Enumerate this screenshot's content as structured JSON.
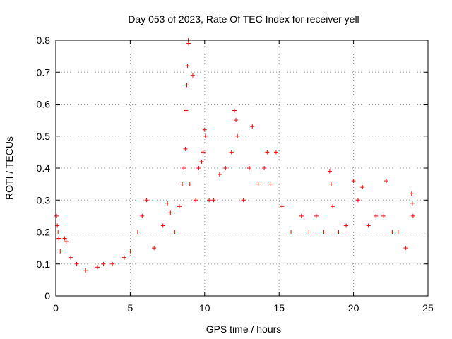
{
  "chart_data": {
    "type": "scatter",
    "title": "Day 053 of 2023, Rate Of TEC Index for receiver yell",
    "xlabel": "GPS time / hours",
    "ylabel": "ROTI / TECUs",
    "xlim": [
      0,
      25
    ],
    "ylim": [
      0,
      0.8
    ],
    "xticks": [
      "0",
      "5",
      "10",
      "15",
      "20",
      "25"
    ],
    "yticks": [
      "0",
      "0.1",
      "0.2",
      "0.3",
      "0.4",
      "0.5",
      "0.6",
      "0.7",
      "0.8"
    ],
    "grid": true,
    "marker": "+",
    "color": "#ff0000",
    "series": [
      {
        "points": [
          [
            0.05,
            0.25
          ],
          [
            0.1,
            0.22
          ],
          [
            0.15,
            0.2
          ],
          [
            0.2,
            0.18
          ],
          [
            0.3,
            0.14
          ],
          [
            0.6,
            0.18
          ],
          [
            0.7,
            0.17
          ],
          [
            1.0,
            0.12
          ],
          [
            1.4,
            0.1
          ],
          [
            2.0,
            0.08
          ],
          [
            2.8,
            0.09
          ],
          [
            3.2,
            0.1
          ],
          [
            3.8,
            0.1
          ],
          [
            4.6,
            0.12
          ],
          [
            5.0,
            0.14
          ],
          [
            5.5,
            0.2
          ],
          [
            5.8,
            0.25
          ],
          [
            6.1,
            0.3
          ],
          [
            6.6,
            0.15
          ],
          [
            7.2,
            0.22
          ],
          [
            7.5,
            0.29
          ],
          [
            7.7,
            0.26
          ],
          [
            8.0,
            0.2
          ],
          [
            8.3,
            0.28
          ],
          [
            8.5,
            0.35
          ],
          [
            8.6,
            0.4
          ],
          [
            8.7,
            0.46
          ],
          [
            8.75,
            0.58
          ],
          [
            8.8,
            0.66
          ],
          [
            8.85,
            0.72
          ],
          [
            8.9,
            0.8
          ],
          [
            8.92,
            0.79
          ],
          [
            9.0,
            0.35
          ],
          [
            9.2,
            0.69
          ],
          [
            9.4,
            0.3
          ],
          [
            9.6,
            0.4
          ],
          [
            9.8,
            0.42
          ],
          [
            9.9,
            0.45
          ],
          [
            10.0,
            0.52
          ],
          [
            10.05,
            0.5
          ],
          [
            10.3,
            0.3
          ],
          [
            10.6,
            0.3
          ],
          [
            11.0,
            0.38
          ],
          [
            11.4,
            0.4
          ],
          [
            11.8,
            0.45
          ],
          [
            12.0,
            0.58
          ],
          [
            12.1,
            0.55
          ],
          [
            12.2,
            0.5
          ],
          [
            12.6,
            0.3
          ],
          [
            13.0,
            0.4
          ],
          [
            13.2,
            0.53
          ],
          [
            13.6,
            0.35
          ],
          [
            14.0,
            0.4
          ],
          [
            14.2,
            0.45
          ],
          [
            14.4,
            0.35
          ],
          [
            14.8,
            0.45
          ],
          [
            15.2,
            0.28
          ],
          [
            15.8,
            0.2
          ],
          [
            16.5,
            0.25
          ],
          [
            17.0,
            0.2
          ],
          [
            17.5,
            0.25
          ],
          [
            18.0,
            0.2
          ],
          [
            18.4,
            0.39
          ],
          [
            18.5,
            0.35
          ],
          [
            18.6,
            0.28
          ],
          [
            19.0,
            0.2
          ],
          [
            19.5,
            0.22
          ],
          [
            20.0,
            0.36
          ],
          [
            20.3,
            0.3
          ],
          [
            20.6,
            0.34
          ],
          [
            21.0,
            0.22
          ],
          [
            21.5,
            0.25
          ],
          [
            22.0,
            0.25
          ],
          [
            22.2,
            0.36
          ],
          [
            22.6,
            0.2
          ],
          [
            23.0,
            0.2
          ],
          [
            23.5,
            0.15
          ],
          [
            23.9,
            0.32
          ],
          [
            23.95,
            0.29
          ],
          [
            24.0,
            0.25
          ]
        ]
      }
    ]
  }
}
